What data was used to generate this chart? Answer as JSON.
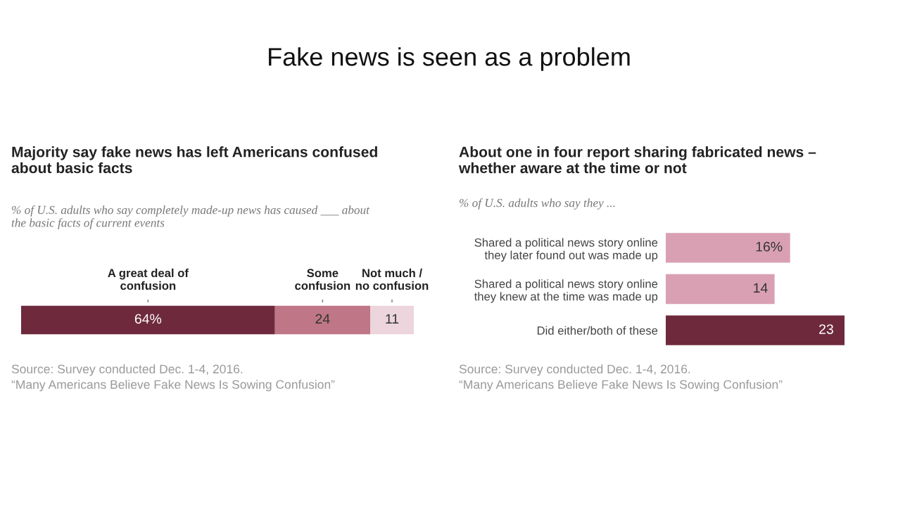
{
  "chart_data": [
    {
      "type": "other",
      "title": "Fake news is seen as a problem"
    },
    {
      "type": "bar",
      "orientation": "horizontal",
      "stacked": true,
      "title": "Majority say fake news has left Americans confused\nabout basic facts",
      "subtitle": "% of U.S. adults who say completely made-up news has caused ___ about\nthe basic facts of current events",
      "categories": [
        null
      ],
      "series": [
        {
          "name": "A great deal of\nconfusion",
          "color": "#6e2a3c",
          "values": [
            64
          ],
          "value_labels": [
            "64%"
          ]
        },
        {
          "name": "Some\nconfusion",
          "color": "#bf7686",
          "values": [
            24
          ],
          "value_labels": [
            "24"
          ]
        },
        {
          "name": "Not much /\nno confusion",
          "color": "#ecd5dc",
          "values": [
            11
          ],
          "value_labels": [
            "11"
          ]
        }
      ],
      "annotations": [
        "Source: Survey conducted Dec. 1-4, 2016.",
        "“Many Americans Believe Fake News Is Sowing Confusion”"
      ]
    },
    {
      "type": "bar",
      "orientation": "horizontal",
      "title": "About one in four report sharing fabricated news –\nwhether aware at the time or not",
      "subtitle": "% of U.S. adults who say they ...",
      "categories": [
        "Shared a political news story online\nthey later found out was made up",
        "Shared a political news story online\nthey knew at the time was made up",
        "Did either/both of these"
      ],
      "values": [
        16,
        14,
        23
      ],
      "colors": [
        "#d9a0b3",
        "#d9a0b3",
        "#6e2a3c"
      ],
      "value_labels": [
        "16%",
        "14",
        "23"
      ],
      "annotations": [
        "Source: Survey conducted Dec. 1-4, 2016.",
        "“Many Americans Believe Fake News Is Sowing Confusion”"
      ]
    }
  ]
}
